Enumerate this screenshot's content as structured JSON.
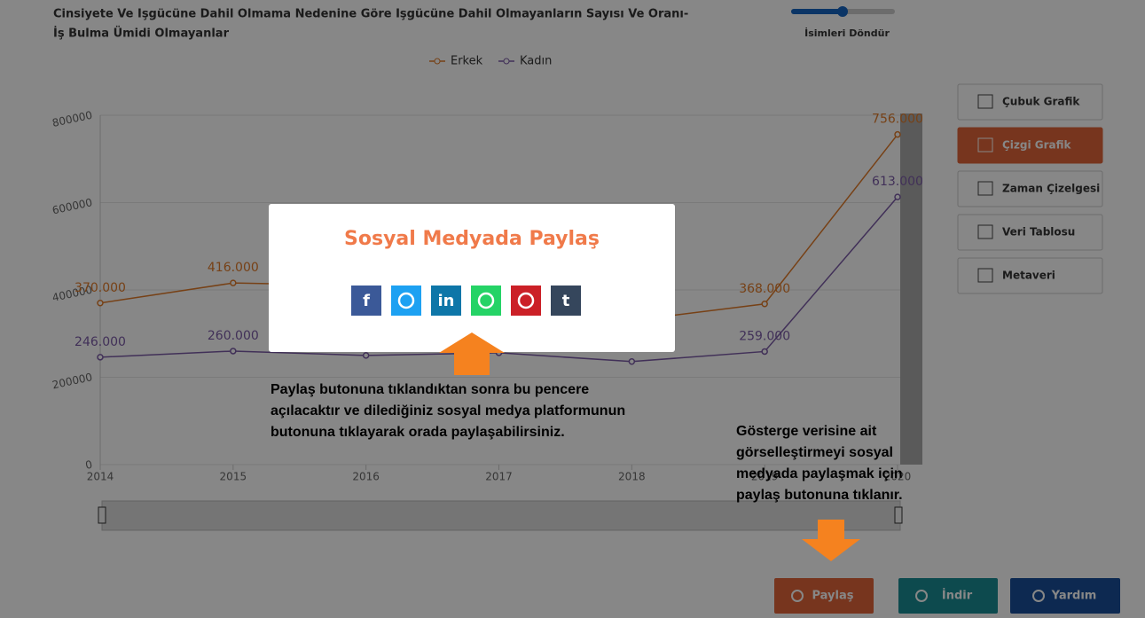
{
  "header": {
    "title_lines": [
      "Cinsiyete Ve Işgücüne Dahil Olmama Nedenine Göre Işgücüne Dahil Olmayanların Sayısı Ve Oranı-",
      "İş Bulma Ümidi Olmayanlar"
    ],
    "rotate_label": "İsimleri Döndür"
  },
  "chart_data": {
    "type": "line",
    "categories": [
      "2014",
      "2015",
      "2016",
      "2017",
      "2018",
      "2019",
      "2020"
    ],
    "series": [
      {
        "name": "Erkek",
        "color": "#e07b2a",
        "values": [
          370000,
          416000,
          410000,
          400000,
          330000,
          368000,
          756000
        ],
        "value_labels": [
          "370.000",
          "416.000",
          null,
          null,
          null,
          "368.000",
          "756.000"
        ]
      },
      {
        "name": "Kadın",
        "color": "#7b5ba6",
        "values": [
          246000,
          260000,
          250000,
          256000,
          236000,
          259000,
          613000
        ],
        "value_labels": [
          "246.000",
          "260.000",
          null,
          null,
          null,
          "259.000",
          "613.000"
        ]
      }
    ],
    "ylim": [
      0,
      800000
    ],
    "yticks": [
      0,
      200000,
      400000,
      600000,
      800000
    ],
    "grid": true
  },
  "side_buttons": [
    "Çubuk Grafik",
    "Çizgi Grafik",
    "Zaman Çizelgesi",
    "Veri Tablosu",
    "Metaveri"
  ],
  "bottom_buttons": [
    "Paylaş",
    "İndir",
    "Yardım"
  ],
  "modal": {
    "title": "Sosyal Medyada Paylaş",
    "share_buttons": [
      {
        "color": "#3b5998",
        "glyph": "f"
      },
      {
        "color": "#1da1f2"
      },
      {
        "color": "#0e76a8",
        "glyph": "in"
      },
      {
        "color": "#25d366"
      },
      {
        "color": "#cb2027"
      },
      {
        "color": "#35465c",
        "glyph": "t"
      }
    ]
  },
  "annotations": [
    {
      "lines": [
        "Paylaş butonuna tıklandıktan sonra bu pencere",
        "açılacaktır ve dilediğiniz sosyal medya platformunun",
        "butonuna tıklayarak orada paylaşabilirsiniz."
      ]
    },
    {
      "lines": [
        "Gösterge verisine ait",
        "görselleştirmeyi sosyal",
        "medyada paylaşmak için",
        "paylaş butonuna tıklanır."
      ]
    }
  ]
}
